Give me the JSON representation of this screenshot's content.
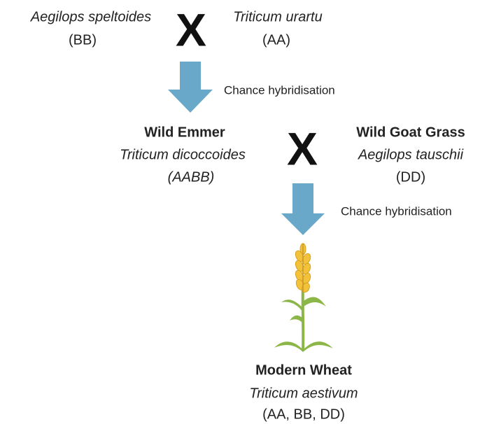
{
  "cross1": {
    "parent1": {
      "species": "Aegilops speltoides",
      "genome": "(BB)"
    },
    "symbol": "X",
    "parent2": {
      "species": "Triticum urartu",
      "genome": "(AA)"
    }
  },
  "step1": {
    "label": "Chance hybridisation"
  },
  "cross2": {
    "parent1": {
      "name": "Wild Emmer",
      "species": "Triticum dicoccoides",
      "genome": "(AABB)"
    },
    "symbol": "X",
    "parent2": {
      "name": "Wild Goat Grass",
      "species": "Aegilops tauschii",
      "genome": "(DD)"
    }
  },
  "step2": {
    "label": "Chance hybridisation"
  },
  "result": {
    "name": "Modern Wheat",
    "species": "Triticum aestivum",
    "genome": "(AA, BB, DD)"
  }
}
